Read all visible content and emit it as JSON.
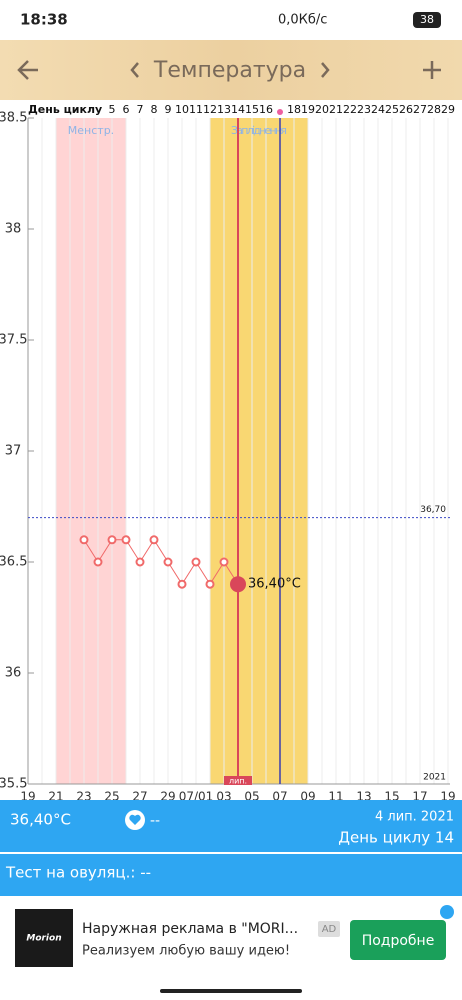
{
  "status_bar": {
    "time": "18:38",
    "speed": "0,0Кб/с",
    "battery": "38"
  },
  "header": {
    "title": "Температура"
  },
  "chart_data": {
    "type": "line",
    "cycle_day_label": "День циклу",
    "cycle_days": [
      null,
      null,
      null,
      null,
      null,
      null,
      5,
      6,
      7,
      8,
      9,
      10,
      11,
      12,
      13,
      14,
      15,
      16,
      null,
      18,
      19,
      20,
      21,
      22,
      23,
      24,
      25,
      26,
      27,
      28,
      29
    ],
    "categories": [
      "19",
      null,
      "21",
      null,
      "23",
      null,
      "25",
      null,
      "27",
      null,
      "29",
      null,
      "07/01",
      null,
      "03",
      null,
      "05",
      null,
      "07",
      null,
      "09",
      null,
      "11",
      null,
      "13",
      null,
      "15",
      null,
      "17",
      null,
      "19"
    ],
    "values": [
      null,
      null,
      null,
      null,
      36.6,
      36.5,
      36.6,
      36.6,
      36.5,
      36.6,
      36.5,
      36.4,
      36.5,
      36.4,
      36.5,
      36.4,
      null,
      null,
      null,
      null,
      null,
      null,
      null,
      null,
      null,
      null,
      null,
      null,
      null,
      null,
      null
    ],
    "color": "#f06a6a",
    "current": {
      "value": 36.4,
      "label": "36,40°C",
      "index": 15
    },
    "ylim": [
      35.5,
      38.5
    ],
    "yticks": [
      35.5,
      36,
      36.5,
      37,
      37.5,
      38,
      38.5
    ],
    "reference_line": {
      "value": 36.7,
      "label": "36,70"
    },
    "bands": [
      {
        "label": "Менстр.",
        "from": 2,
        "to": 7,
        "color": "#ffd4d4"
      },
      {
        "label": "Запліднення",
        "from": 13,
        "to": 20,
        "color": "#f9d772"
      }
    ],
    "today_line": {
      "index": 15,
      "label": "лип.",
      "color": "#d9475a"
    },
    "ovulation_line": {
      "index": 18,
      "color": "#3b3fb0"
    },
    "ovulation_marker": {
      "index": 18,
      "color": "#ee5fa0"
    },
    "year": "2021"
  },
  "info": {
    "temperature": "36,40°C",
    "heart": "--",
    "date": "4 лип. 2021",
    "cycle_day": "День циклу 14",
    "ovulation_test": "Тест на овуляц.: --"
  },
  "ad": {
    "logo": "Morion",
    "title": "Наружная реклама в \"MORI...",
    "badge": "AD",
    "subtitle": "Реализуем любую вашу идею!",
    "button": "Подробне"
  }
}
